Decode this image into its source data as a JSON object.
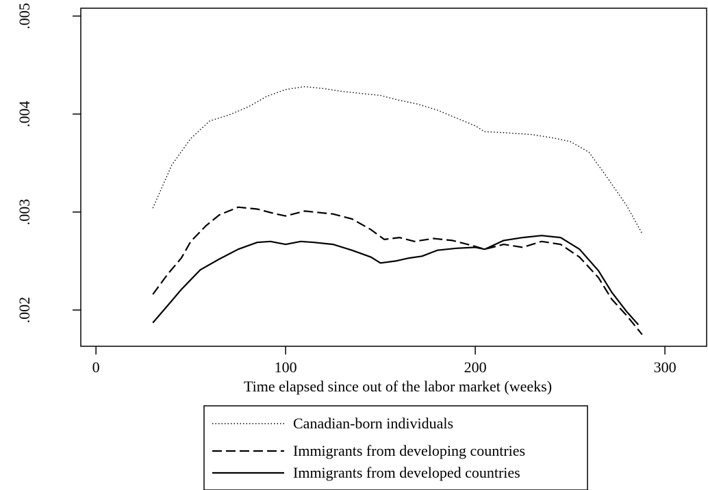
{
  "chart_data": {
    "type": "line",
    "title": "",
    "xlabel": "Time elapsed since out of the labor market (weeks)",
    "ylabel": "",
    "xlim": [
      -8,
      322
    ],
    "ylim": [
      0.00163,
      0.00508
    ],
    "xticks": [
      0,
      100,
      200,
      300
    ],
    "xtick_labels": [
      "0",
      "100",
      "200",
      "300"
    ],
    "yticks": [
      0.002,
      0.003,
      0.004,
      0.005
    ],
    "ytick_labels": [
      ".002",
      ".003",
      ".004",
      ".005"
    ],
    "grid": false,
    "legend_position": "bottom",
    "series": [
      {
        "name": "Canadian-born individuals",
        "style": "dotted",
        "color": "#000000",
        "points": [
          [
            30,
            0.00304
          ],
          [
            40,
            0.00348
          ],
          [
            50,
            0.00375
          ],
          [
            60,
            0.00393
          ],
          [
            70,
            0.00399
          ],
          [
            80,
            0.00407
          ],
          [
            90,
            0.00418
          ],
          [
            100,
            0.00425
          ],
          [
            110,
            0.00428
          ],
          [
            120,
            0.00426
          ],
          [
            130,
            0.00423
          ],
          [
            140,
            0.00421
          ],
          [
            150,
            0.00419
          ],
          [
            160,
            0.00414
          ],
          [
            170,
            0.0041
          ],
          [
            180,
            0.00404
          ],
          [
            190,
            0.00396
          ],
          [
            200,
            0.00388
          ],
          [
            205,
            0.00382
          ],
          [
            215,
            0.00381
          ],
          [
            230,
            0.00379
          ],
          [
            240,
            0.00376
          ],
          [
            250,
            0.00372
          ],
          [
            260,
            0.00361
          ],
          [
            270,
            0.00334
          ],
          [
            280,
            0.00306
          ],
          [
            288,
            0.00278
          ]
        ]
      },
      {
        "name": "Immigrants from developing countries",
        "style": "dashed",
        "color": "#000000",
        "points": [
          [
            30,
            0.00216
          ],
          [
            38,
            0.00237
          ],
          [
            45,
            0.00253
          ],
          [
            50,
            0.0027
          ],
          [
            58,
            0.00286
          ],
          [
            65,
            0.00297
          ],
          [
            75,
            0.00305
          ],
          [
            85,
            0.00303
          ],
          [
            95,
            0.00298
          ],
          [
            100,
            0.00296
          ],
          [
            110,
            0.00301
          ],
          [
            125,
            0.00298
          ],
          [
            135,
            0.00293
          ],
          [
            145,
            0.00282
          ],
          [
            152,
            0.00272
          ],
          [
            160,
            0.00274
          ],
          [
            168,
            0.0027
          ],
          [
            178,
            0.00273
          ],
          [
            188,
            0.00271
          ],
          [
            198,
            0.00266
          ],
          [
            205,
            0.00262
          ],
          [
            215,
            0.00267
          ],
          [
            225,
            0.00264
          ],
          [
            235,
            0.0027
          ],
          [
            245,
            0.00267
          ],
          [
            255,
            0.00254
          ],
          [
            265,
            0.00233
          ],
          [
            272,
            0.00211
          ],
          [
            280,
            0.00194
          ],
          [
            288,
            0.00175
          ]
        ]
      },
      {
        "name": "Immigrants from developed countries",
        "style": "solid",
        "color": "#000000",
        "points": [
          [
            30,
            0.00187
          ],
          [
            38,
            0.00205
          ],
          [
            45,
            0.00221
          ],
          [
            55,
            0.00241
          ],
          [
            65,
            0.00252
          ],
          [
            75,
            0.00262
          ],
          [
            85,
            0.00269
          ],
          [
            92,
            0.0027
          ],
          [
            100,
            0.00267
          ],
          [
            108,
            0.0027
          ],
          [
            115,
            0.00269
          ],
          [
            125,
            0.00267
          ],
          [
            135,
            0.00261
          ],
          [
            145,
            0.00254
          ],
          [
            150,
            0.00248
          ],
          [
            158,
            0.0025
          ],
          [
            165,
            0.00253
          ],
          [
            172,
            0.00255
          ],
          [
            180,
            0.00261
          ],
          [
            190,
            0.00263
          ],
          [
            200,
            0.00264
          ],
          [
            205,
            0.00262
          ],
          [
            215,
            0.00271
          ],
          [
            225,
            0.00274
          ],
          [
            235,
            0.00276
          ],
          [
            245,
            0.00274
          ],
          [
            255,
            0.00262
          ],
          [
            265,
            0.0024
          ],
          [
            272,
            0.00218
          ],
          [
            280,
            0.00198
          ],
          [
            286,
            0.00185
          ]
        ]
      }
    ]
  }
}
